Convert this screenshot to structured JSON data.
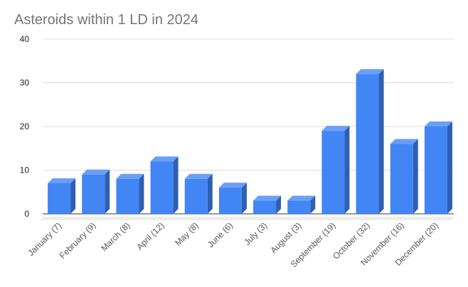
{
  "chart_data": {
    "type": "bar",
    "style": "3d",
    "title": "Asteroids within 1 LD in 2024",
    "xlabel": "",
    "ylabel": "",
    "ylim": [
      0,
      40
    ],
    "yticks": [
      0,
      10,
      20,
      30,
      40
    ],
    "grid": true,
    "legend": "none",
    "categories": [
      "January (7)",
      "February (9)",
      "March (8)",
      "April (12)",
      "May (8)",
      "June (6)",
      "July (3)",
      "August (3)",
      "September (19)",
      "October (32)",
      "November (16)",
      "December (20)"
    ],
    "values": [
      7,
      9,
      8,
      12,
      8,
      6,
      3,
      3,
      19,
      32,
      16,
      20
    ],
    "colors": {
      "bar_front": "#4285f4",
      "bar_top": "#6b9ff7",
      "bar_side": "#2f5fb0",
      "grid": "#dddddd",
      "axis": "#333333",
      "title": "#757575"
    }
  }
}
